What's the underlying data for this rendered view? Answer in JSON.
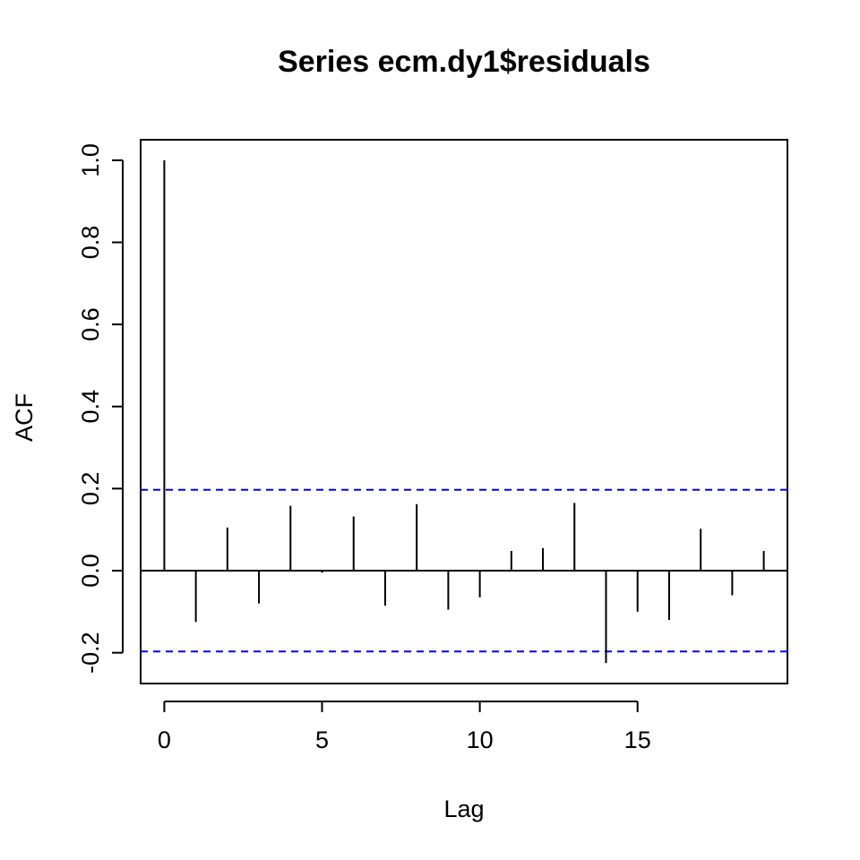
{
  "chart_data": {
    "type": "bar",
    "title": "Series  ecm.dy1$residuals",
    "xlabel": "Lag",
    "ylabel": "ACF",
    "x": [
      0,
      1,
      2,
      3,
      4,
      5,
      6,
      7,
      8,
      9,
      10,
      11,
      12,
      13,
      14,
      15,
      16,
      17,
      18,
      19
    ],
    "values": [
      1.0,
      -0.125,
      0.105,
      -0.08,
      0.158,
      -0.005,
      0.132,
      -0.085,
      0.162,
      -0.095,
      -0.065,
      0.048,
      0.055,
      0.165,
      -0.225,
      -0.1,
      -0.12,
      0.102,
      -0.06,
      0.048
    ],
    "xlim": [
      -0.75,
      19.75
    ],
    "ylim": [
      -0.275,
      1.05
    ],
    "xticks": [
      0,
      5,
      10,
      15
    ],
    "xtick_labels": [
      "0",
      "5",
      "10",
      "15"
    ],
    "yticks": [
      -0.2,
      0.0,
      0.2,
      0.4,
      0.6,
      0.8,
      1.0
    ],
    "ytick_labels": [
      "-0.2",
      "0.0",
      "0.2",
      "0.4",
      "0.6",
      "0.8",
      "1.0"
    ],
    "confidence_bounds": [
      0.197,
      -0.197
    ],
    "confidence_color": "#0000ff",
    "line_color": "#000000"
  }
}
